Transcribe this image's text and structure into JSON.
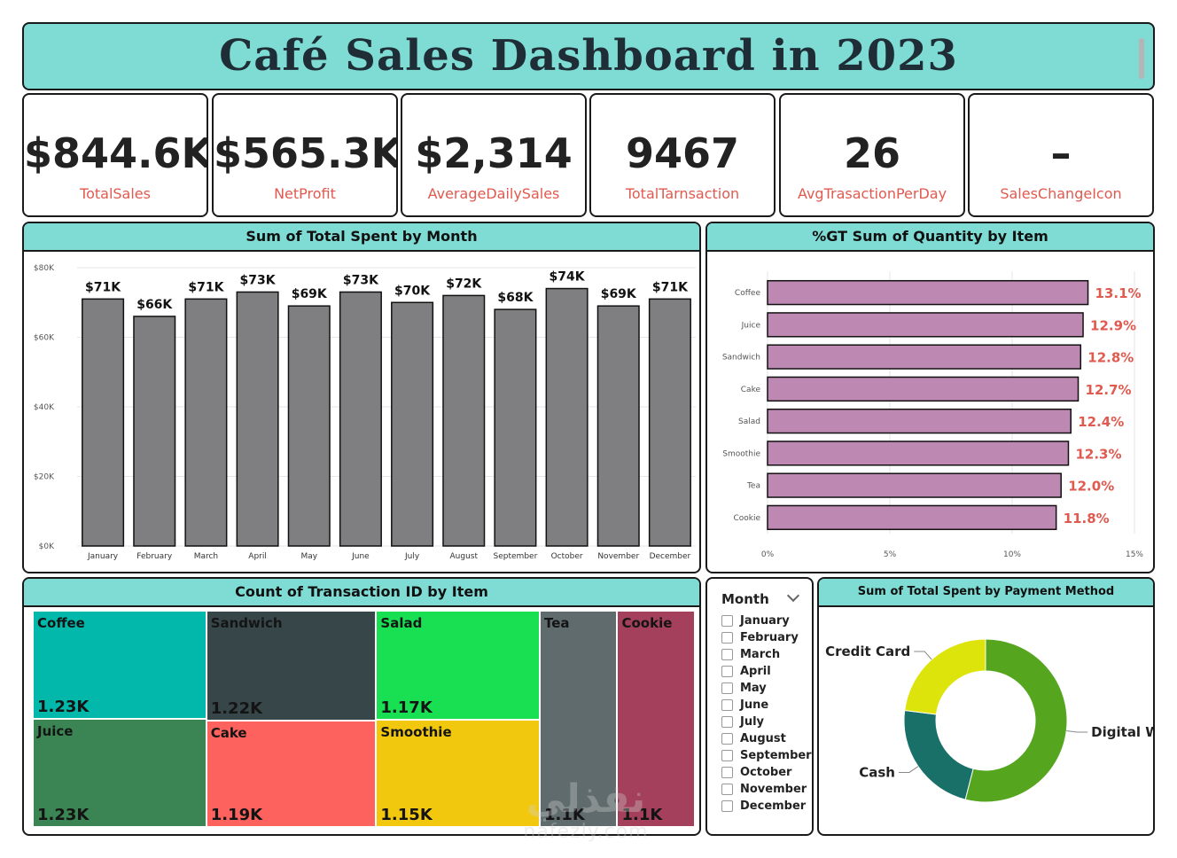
{
  "title": "Café Sales Dashboard in 2023",
  "kpis": [
    {
      "value": "$844.6K",
      "label": "TotalSales"
    },
    {
      "value": "$565.3K",
      "label": "NetProfit"
    },
    {
      "value": "$2,314",
      "label": "AverageDailySales"
    },
    {
      "value": "9467",
      "label": "TotalTarnsaction"
    },
    {
      "value": "26",
      "label": "AvgTrasactionPerDay"
    },
    {
      "value": "–",
      "label": "SalesChangeIcon"
    }
  ],
  "colors": {
    "header": "#7fdcd4",
    "bar_month": "#7f7e80",
    "bar_item": "#bd88b1",
    "kpi_label": "#e05a4f"
  },
  "chart_data": [
    {
      "type": "bar",
      "title": "Sum of Total Spent by Month",
      "categories": [
        "January",
        "February",
        "March",
        "April",
        "May",
        "June",
        "July",
        "August",
        "September",
        "October",
        "November",
        "December"
      ],
      "values": [
        71000,
        66000,
        71000,
        73000,
        69000,
        73000,
        70000,
        72000,
        68000,
        74000,
        69000,
        71000
      ],
      "data_labels": [
        "$71K",
        "$66K",
        "$71K",
        "$73K",
        "$69K",
        "$73K",
        "$70K",
        "$72K",
        "$68K",
        "$74K",
        "$69K",
        "$71K"
      ],
      "ylim": [
        0,
        80000
      ],
      "yticks": [
        0,
        20000,
        40000,
        60000,
        80000
      ],
      "ytick_labels": [
        "$0K",
        "$20K",
        "$40K",
        "$60K",
        "$80K"
      ],
      "grid": true
    },
    {
      "type": "bar",
      "orientation": "horizontal",
      "title": "%GT Sum of Quantity by Item",
      "categories": [
        "Coffee",
        "Juice",
        "Sandwich",
        "Cake",
        "Salad",
        "Smoothie",
        "Tea",
        "Cookie"
      ],
      "values": [
        13.1,
        12.9,
        12.8,
        12.7,
        12.4,
        12.3,
        12.0,
        11.8
      ],
      "data_labels": [
        "13.1%",
        "12.9%",
        "12.8%",
        "12.7%",
        "12.4%",
        "12.3%",
        "12.0%",
        "11.8%"
      ],
      "xlim": [
        0,
        15
      ],
      "xticks": [
        0,
        5,
        10,
        15
      ],
      "xtick_labels": [
        "0%",
        "5%",
        "10%",
        "15%"
      ],
      "grid": true
    },
    {
      "type": "treemap",
      "title": "Count of Transaction ID by Item",
      "items": [
        {
          "name": "Coffee",
          "label": "1.23K",
          "value": 1230,
          "color": "#01b8aa"
        },
        {
          "name": "Juice",
          "label": "1.23K",
          "value": 1230,
          "color": "#3a8553"
        },
        {
          "name": "Sandwich",
          "label": "1.22K",
          "value": 1220,
          "color": "#374649"
        },
        {
          "name": "Cake",
          "label": "1.19K",
          "value": 1190,
          "color": "#fd625e"
        },
        {
          "name": "Salad",
          "label": "1.17K",
          "value": 1170,
          "color": "#19e052"
        },
        {
          "name": "Smoothie",
          "label": "1.15K",
          "value": 1150,
          "color": "#f2c80f"
        },
        {
          "name": "Tea",
          "label": "1.1K",
          "value": 1100,
          "color": "#5f6b6d"
        },
        {
          "name": "Cookie",
          "label": "1.1K",
          "value": 1100,
          "color": "#a4405c"
        }
      ]
    },
    {
      "type": "pie",
      "title": "Sum of Total Spent by Payment Method",
      "labels": [
        "Digital Wallet",
        "Cash",
        "Credit Card"
      ],
      "values": [
        54,
        23,
        23
      ],
      "colors": [
        "#55a61e",
        "#187068",
        "#dde40c"
      ]
    }
  ],
  "slicer": {
    "title": "Month",
    "items": [
      "January",
      "February",
      "March",
      "April",
      "May",
      "June",
      "July",
      "August",
      "September",
      "October",
      "November",
      "December"
    ]
  },
  "watermark": {
    "logo": "نفذلي",
    "url": "nafezly.com"
  }
}
